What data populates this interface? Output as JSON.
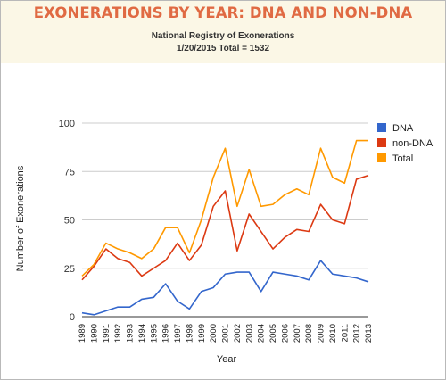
{
  "header": {
    "title": "EXONERATIONS BY YEAR: DNA AND NON-DNA",
    "subtitle_line1": "National Registry of Exonerations",
    "subtitle_line2": "1/20/2015 Total = 1532"
  },
  "chart_data": {
    "type": "line",
    "title": "EXONERATIONS BY YEAR: DNA AND NON-DNA",
    "subtitle": "National Registry of Exonerations 1/20/2015 Total = 1532",
    "xlabel": "Year",
    "ylabel": "Number of Exonerations",
    "ylim": [
      0,
      100
    ],
    "yticks": [
      0,
      25,
      50,
      75,
      100
    ],
    "grid": true,
    "legend_position": "right",
    "x": [
      "1989",
      "1990",
      "1991",
      "1992",
      "1993",
      "1994",
      "1995",
      "1996",
      "1997",
      "1998",
      "1999",
      "2000",
      "2001",
      "2002",
      "2003",
      "2004",
      "2005",
      "2006",
      "2007",
      "2008",
      "2009",
      "2010",
      "2011",
      "2012",
      "2013"
    ],
    "series": [
      {
        "name": "DNA",
        "color": "#3366cc",
        "values": [
          2,
          1,
          3,
          5,
          5,
          9,
          10,
          17,
          8,
          4,
          13,
          15,
          22,
          23,
          23,
          13,
          23,
          22,
          21,
          19,
          29,
          22,
          21,
          20,
          18
        ]
      },
      {
        "name": "non-DNA",
        "color": "#dc3912",
        "values": [
          19,
          26,
          35,
          30,
          28,
          21,
          25,
          29,
          38,
          29,
          37,
          57,
          65,
          34,
          53,
          44,
          35,
          41,
          45,
          44,
          58,
          50,
          48,
          71,
          73
        ]
      },
      {
        "name": "Total",
        "color": "#ff9900",
        "values": [
          21,
          27,
          38,
          35,
          33,
          30,
          35,
          46,
          46,
          33,
          50,
          72,
          87,
          57,
          76,
          57,
          58,
          63,
          66,
          63,
          87,
          72,
          69,
          91,
          91
        ]
      }
    ]
  }
}
